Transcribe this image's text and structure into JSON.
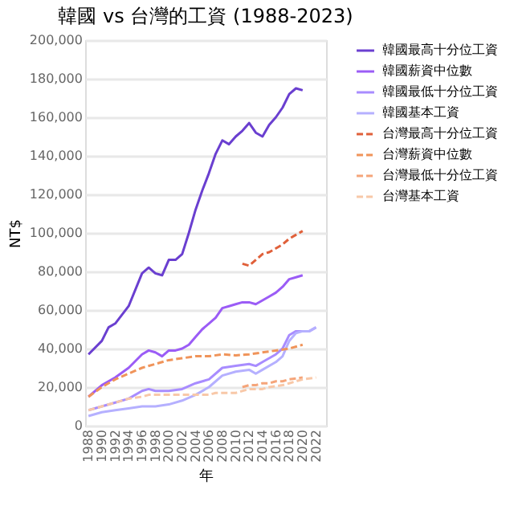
{
  "chart_data": {
    "type": "line",
    "title": "韓國 vs 台灣的工資 (1988-2023)",
    "xlabel": "年",
    "ylabel": "NT$",
    "xlim": [
      1987.5,
      2023.5
    ],
    "xticks": [
      1988,
      1990,
      1992,
      1994,
      1996,
      1998,
      2000,
      2002,
      2004,
      2006,
      2008,
      2010,
      2012,
      2014,
      2016,
      2018,
      2020,
      2022
    ],
    "ylim": [
      0,
      200000
    ],
    "yticks": [
      0,
      {
        "value": 20000,
        "label": "20,000"
      },
      {
        "value": 40000,
        "label": "40,000"
      },
      {
        "value": 60000,
        "label": "60,000"
      },
      {
        "value": 80000,
        "label": "80,000"
      },
      {
        "value": 100000,
        "label": "100,000"
      },
      {
        "value": 120000,
        "label": "120,000"
      },
      {
        "value": 140000,
        "label": "140,000"
      },
      {
        "value": 160000,
        "label": "160,000"
      },
      {
        "value": 180000,
        "label": "180,000"
      },
      {
        "value": 200000,
        "label": "200,000"
      }
    ],
    "grid": "y",
    "legend": "right",
    "marker": "none",
    "series": [
      {
        "name": "韓國最高十分位工資",
        "color": "#6a3fd0",
        "line_style": "solid",
        "x": [
          1988,
          1990,
          1991,
          1992,
          1994,
          1996,
          1997,
          1998,
          1999,
          2000,
          2001,
          2002,
          2003,
          2004,
          2005,
          2006,
          2007,
          2008,
          2009,
          2010,
          2011,
          2012,
          2013,
          2014,
          2015,
          2016,
          2017,
          2018,
          2019,
          2020
        ],
        "values": [
          37000,
          44000,
          51000,
          53000,
          62000,
          79000,
          82000,
          79000,
          78000,
          86000,
          86000,
          89000,
          100000,
          112000,
          122000,
          131000,
          141000,
          148000,
          146000,
          150000,
          153000,
          157000,
          152000,
          150000,
          156000,
          160000,
          165000,
          172000,
          175000,
          174000
        ]
      },
      {
        "name": "韓國薪資中位數",
        "color": "#9b5cf6",
        "line_style": "solid",
        "x": [
          1988,
          1990,
          1992,
          1994,
          1996,
          1997,
          1998,
          1999,
          2000,
          2001,
          2002,
          2003,
          2004,
          2005,
          2006,
          2007,
          2008,
          2009,
          2010,
          2011,
          2012,
          2013,
          2014,
          2015,
          2016,
          2017,
          2018,
          2019,
          2020
        ],
        "values": [
          15000,
          21000,
          25000,
          30000,
          37000,
          39000,
          38000,
          36000,
          39000,
          39000,
          40000,
          42000,
          46000,
          50000,
          53000,
          56000,
          61000,
          62000,
          63000,
          64000,
          64000,
          63000,
          65000,
          67000,
          69000,
          72000,
          76000,
          77000,
          78000
        ]
      },
      {
        "name": "韓國最低十分位工資",
        "color": "#a88cff",
        "line_style": "solid",
        "x": [
          1988,
          1990,
          1992,
          1994,
          1996,
          1997,
          1998,
          2000,
          2002,
          2004,
          2006,
          2008,
          2010,
          2012,
          2013,
          2014,
          2016,
          2017,
          2018,
          2019,
          2020,
          2021,
          2022
        ],
        "values": [
          8000,
          10000,
          12000,
          14000,
          18000,
          19000,
          18000,
          18000,
          19000,
          22000,
          24000,
          30000,
          31000,
          32000,
          31000,
          33000,
          37000,
          40000,
          47000,
          49000,
          49000,
          49000,
          51000
        ]
      },
      {
        "name": "韓國基本工資",
        "color": "#b5b0ff",
        "line_style": "solid",
        "x": [
          1988,
          1990,
          1992,
          1994,
          1996,
          1998,
          2000,
          2002,
          2004,
          2006,
          2008,
          2010,
          2012,
          2013,
          2014,
          2016,
          2017,
          2018,
          2019,
          2020,
          2021,
          2022
        ],
        "values": [
          5000,
          7000,
          8000,
          9000,
          10000,
          10000,
          11000,
          13000,
          16000,
          20000,
          26000,
          28000,
          29000,
          27000,
          29000,
          33000,
          36000,
          44000,
          48000,
          49000,
          49000,
          51000
        ]
      },
      {
        "name": "台灣最高十分位工資",
        "color": "#e0603a",
        "line_style": "dashed",
        "x": [
          2011,
          2012,
          2013,
          2014,
          2015,
          2016,
          2017,
          2018,
          2019,
          2020
        ],
        "values": [
          84000,
          83000,
          86000,
          89000,
          90000,
          92000,
          94000,
          97000,
          99000,
          101000
        ]
      },
      {
        "name": "台灣薪資中位數",
        "color": "#f0945a",
        "line_style": "dashed",
        "x": [
          1988,
          1990,
          1992,
          1994,
          1996,
          1998,
          2000,
          2002,
          2004,
          2006,
          2008,
          2010,
          2012,
          2014,
          2016,
          2018,
          2020
        ],
        "values": [
          15000,
          20000,
          24000,
          27000,
          30000,
          32000,
          34000,
          35000,
          36000,
          36000,
          37000,
          36500,
          37000,
          38000,
          39000,
          40000,
          42000
        ]
      },
      {
        "name": "台灣最低十分位工資",
        "color": "#f5a57a",
        "line_style": "dashed",
        "x": [
          2011,
          2012,
          2013,
          2014,
          2015,
          2016,
          2017,
          2018,
          2019,
          2020
        ],
        "values": [
          20000,
          21000,
          21000,
          22000,
          22000,
          23000,
          23000,
          24000,
          24500,
          25000
        ]
      },
      {
        "name": "台灣基本工資",
        "color": "#f8c8a8",
        "line_style": "dashed",
        "x": [
          1988,
          1990,
          1992,
          1994,
          1996,
          1997,
          1998,
          2000,
          2002,
          2004,
          2006,
          2007,
          2010,
          2012,
          2014,
          2015,
          2017,
          2018,
          2020,
          2022
        ],
        "values": [
          8000,
          10000,
          12000,
          14000,
          15000,
          16000,
          16000,
          16000,
          16000,
          16000,
          16000,
          17000,
          17000,
          19000,
          19000,
          20000,
          21000,
          22000,
          24000,
          25000
        ]
      }
    ]
  }
}
